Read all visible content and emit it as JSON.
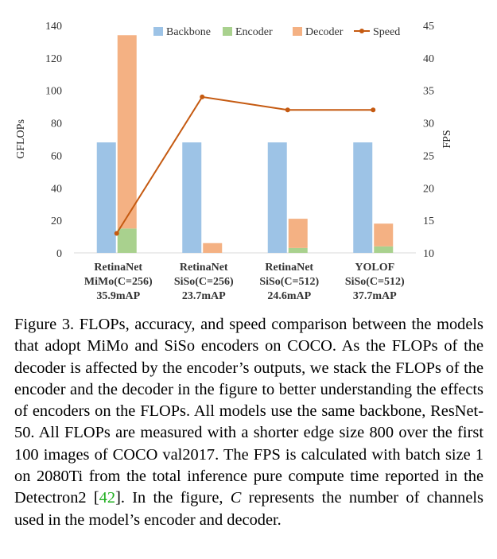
{
  "chart_data": {
    "type": "bar",
    "ylabel": "GFLOPs",
    "y2label": "FPS",
    "ylim": [
      0,
      140
    ],
    "y2lim": [
      10,
      45
    ],
    "yticks": [
      "0",
      "20",
      "40",
      "60",
      "80",
      "100",
      "120",
      "140"
    ],
    "y2ticks": [
      "10",
      "15",
      "20",
      "25",
      "30",
      "35",
      "40",
      "45"
    ],
    "grid": false,
    "legend_position": "top",
    "categories": [
      [
        "RetinaNet",
        "MiMo(C=256)",
        "35.9mAP"
      ],
      [
        "RetinaNet",
        "SiSo(C=256)",
        "23.7mAP"
      ],
      [
        "RetinaNet",
        "SiSo(C=512)",
        "24.6mAP"
      ],
      [
        "YOLOF",
        "SiSo(C=512)",
        "37.7mAP"
      ]
    ],
    "series": [
      {
        "name": "Backbone",
        "type": "bar",
        "color": "#9dc3e6",
        "values": [
          68,
          68,
          68,
          68
        ]
      },
      {
        "name": "Encoder",
        "type": "stacked-bar",
        "color": "#a9d18e",
        "values": [
          15,
          0,
          3,
          4
        ]
      },
      {
        "name": "Decoder",
        "type": "stacked-bar",
        "color": "#f4b183",
        "values": [
          119,
          6,
          18,
          14
        ]
      },
      {
        "name": "Speed",
        "type": "line",
        "axis": "right",
        "color": "#c55a11",
        "values": [
          13,
          34,
          32,
          32
        ]
      }
    ]
  },
  "caption": {
    "prefix": "Figure 3. FLOPs, accuracy, and speed comparison between the models that adopt MiMo and SiSo encoders on COCO. As the FLOPs of the decoder is affected by the encoder’s outputs, we stack the FLOPs of the encoder and the decoder in the figure to better understanding the effects of encoders on the FLOPs.  All models use the same backbone, ResNet-50. All FLOPs are measured with a shorter edge size 800 over the first 100 images of COCO val2017. The FPS is calculated with batch size 1 on 2080Ti from the total inference pure compute time reported in the Detectron2 [",
    "ref": "42",
    "middle": "]. In the figure, ",
    "var": "C",
    "suffix": " represents the number of channels used in the model’s encoder and decoder."
  }
}
